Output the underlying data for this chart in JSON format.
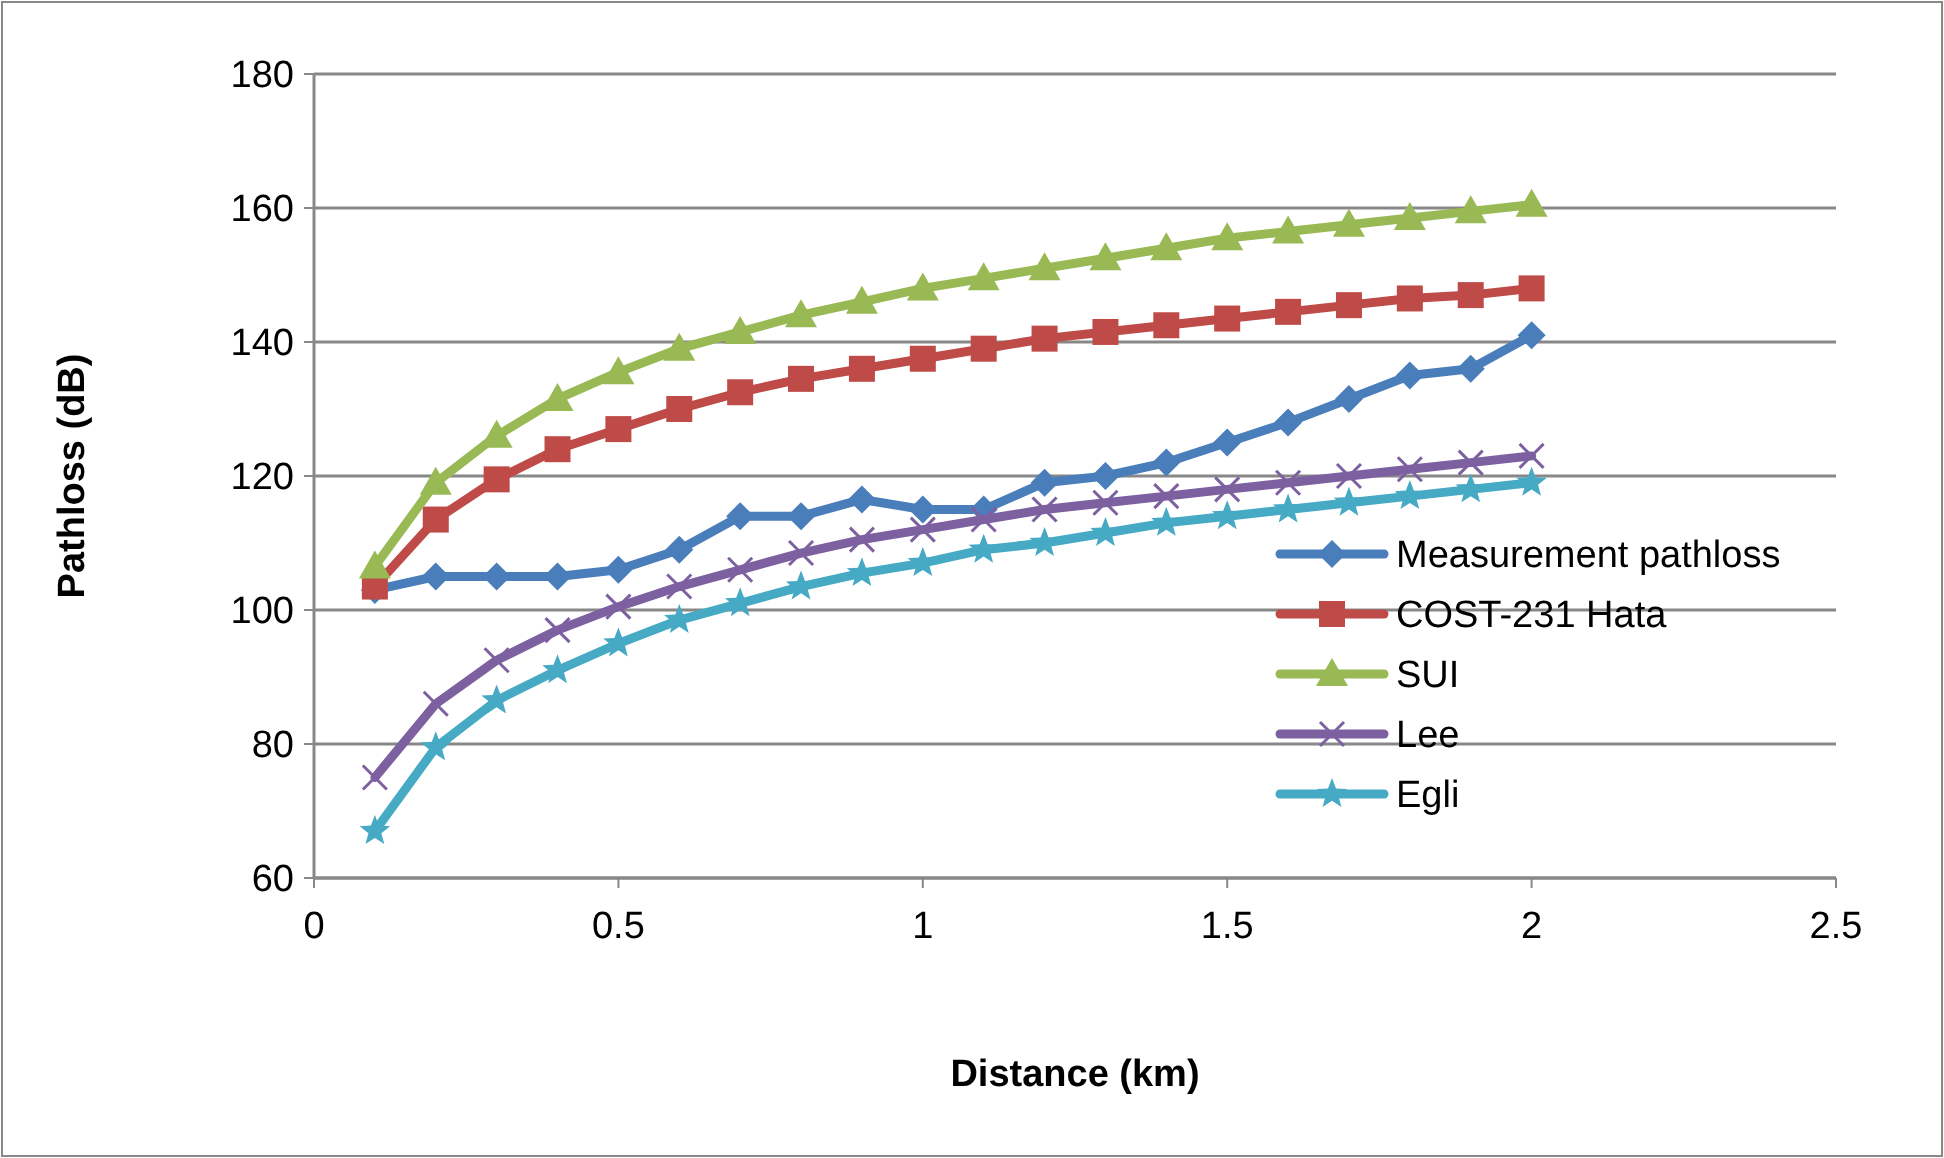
{
  "chart_data": {
    "type": "line",
    "xlabel": "Distance (km)",
    "ylabel": "Pathloss (dB)",
    "x": [
      0.1,
      0.2,
      0.3,
      0.4,
      0.5,
      0.6,
      0.7,
      0.8,
      0.9,
      1.0,
      1.1,
      1.2,
      1.3,
      1.4,
      1.5,
      1.6,
      1.7,
      1.8,
      1.9,
      2.0
    ],
    "xlim": [
      0,
      2.5
    ],
    "xticks": [
      0,
      0.5,
      1,
      1.5,
      2,
      2.5
    ],
    "ylim": [
      60,
      180
    ],
    "yticks": [
      60,
      80,
      100,
      120,
      140,
      160,
      180
    ],
    "grid": "y",
    "legend": "right",
    "series": [
      {
        "name": "Measurement pathloss",
        "color": "#4a7ebb",
        "marker": "diamond",
        "values": [
          103,
          105,
          105,
          105,
          106,
          109,
          114,
          114,
          116.5,
          115,
          115,
          119,
          120,
          122,
          125,
          128,
          131.5,
          135,
          136,
          141
        ]
      },
      {
        "name": "COST-231 Hata",
        "color": "#be4b48",
        "marker": "square",
        "values": [
          103.5,
          113.5,
          119.5,
          124,
          127,
          130,
          132.5,
          134.5,
          136,
          137.5,
          139,
          140.5,
          141.5,
          142.5,
          143.5,
          144.5,
          145.5,
          146.5,
          147,
          148
        ]
      },
      {
        "name": "SUI",
        "color": "#98b954",
        "marker": "triangle",
        "values": [
          106.5,
          119,
          126,
          131.5,
          135.5,
          139,
          141.5,
          144,
          146,
          148,
          149.5,
          151,
          152.5,
          154,
          155.5,
          156.5,
          157.5,
          158.5,
          159.5,
          160.5
        ]
      },
      {
        "name": "Lee",
        "color": "#7d60a0",
        "marker": "cross",
        "values": [
          75,
          86,
          92.5,
          97,
          100.5,
          103.5,
          106,
          108.5,
          110.5,
          112,
          113.5,
          115,
          116,
          117,
          118,
          119,
          120,
          121,
          122,
          123
        ]
      },
      {
        "name": "Egli",
        "color": "#46aac5",
        "marker": "star",
        "values": [
          67,
          79.5,
          86.5,
          91,
          95,
          98.5,
          101,
          103.5,
          105.5,
          107,
          109,
          110,
          111.5,
          113,
          114,
          115,
          116,
          117,
          118,
          119
        ]
      }
    ]
  }
}
